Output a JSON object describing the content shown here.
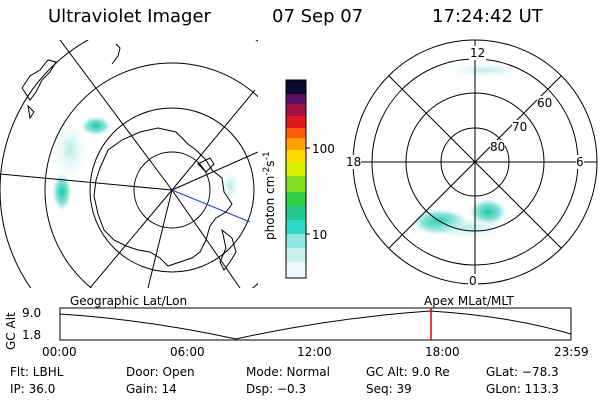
{
  "header": {
    "instrument": "Ultraviolet Imager",
    "date": "07 Sep 07",
    "time": "17:24:42 UT"
  },
  "colorbar": {
    "label": "photon cm",
    "label_sup1": "-2",
    "label_mid": "s",
    "label_sup2": "-1",
    "ticks": [
      "100",
      "10"
    ]
  },
  "right_map": {
    "mlt_labels": {
      "top": "12",
      "left": "18",
      "right": "6",
      "bottom": "0"
    },
    "lat_labels": [
      "60",
      "70",
      "80"
    ]
  },
  "timeline": {
    "left_label": "Geographic Lat/Lon",
    "right_label": "Apex MLat/MLT",
    "axis_title": "GC Alt",
    "y_ticks": [
      "9.0",
      "1.8"
    ],
    "x_ticks": [
      "00:00",
      "06:00",
      "12:00",
      "18:00",
      "23:59"
    ],
    "current_time_fraction": 0.726
  },
  "info": {
    "flt": "Flt: LBHL",
    "door": "Door: Open",
    "mode": "Mode: Normal",
    "gc_alt": "GC Alt: 9.0 Re",
    "glat": "GLat: −78.3",
    "ip": "IP: 36.0",
    "gain": "Gain: 14",
    "dsp": "Dsp:   −0.3",
    "seq": "Seq: 39",
    "glon": "GLon: 113.3"
  },
  "colors": {
    "cursor": "#e00000",
    "coast": "#000000",
    "aurora_low": "#9be7e0",
    "aurora_high": "#2ed1b0"
  }
}
